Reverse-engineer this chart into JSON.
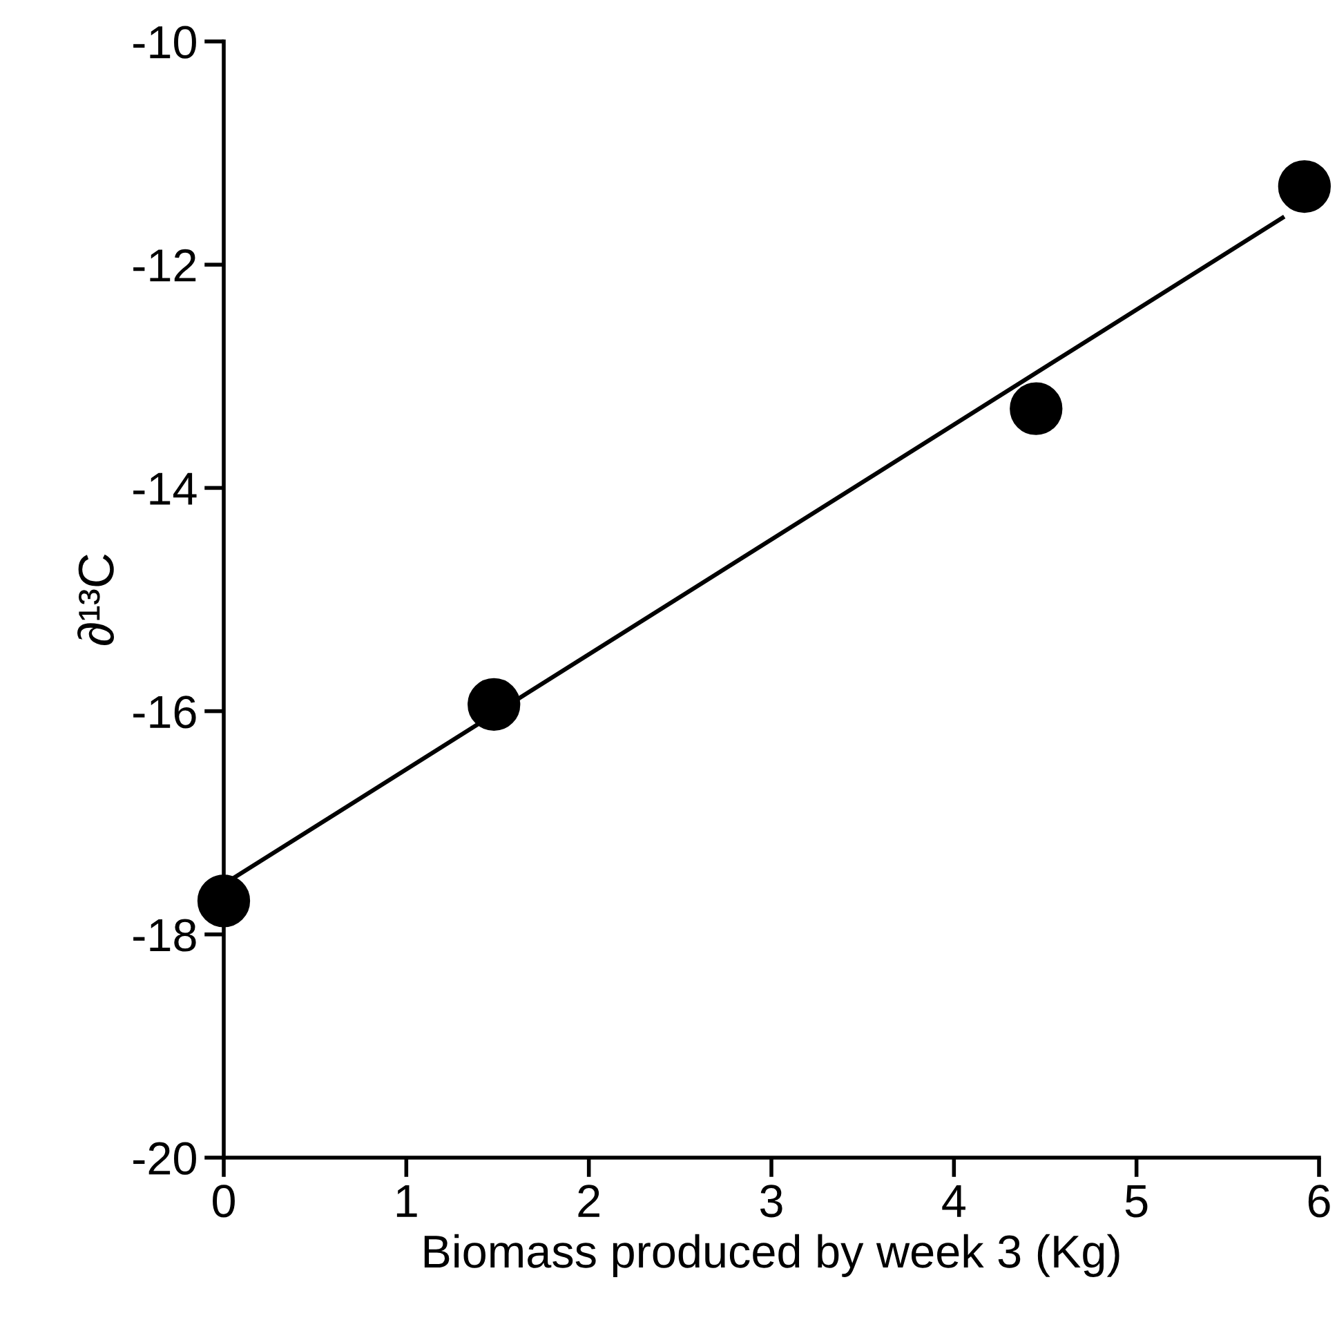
{
  "chart_data": {
    "type": "scatter",
    "xlabel": "Biomass produced by week 3 (Kg)",
    "ylabel": "∂¹³C",
    "series": [
      {
        "color": "#000000",
        "marker": "circle",
        "x": [
          0,
          1.48,
          4.45,
          5.92
        ],
        "values": [
          -17.7,
          -15.94,
          -13.29,
          -11.3
        ]
      },
      {
        "type": "line",
        "color": "#000000",
        "marker": "none",
        "line_style": "solid",
        "x": [
          0,
          5.8
        ],
        "values": [
          -17.55,
          -11.58
        ]
      }
    ],
    "xlim": [
      0,
      6
    ],
    "xticks": [
      0,
      1,
      2,
      3,
      4,
      5,
      6
    ],
    "ylim": [
      -20,
      -10
    ],
    "yticks": [
      -20,
      -18,
      -16,
      -14,
      -12,
      -10
    ],
    "grid": false,
    "legend": false
  }
}
